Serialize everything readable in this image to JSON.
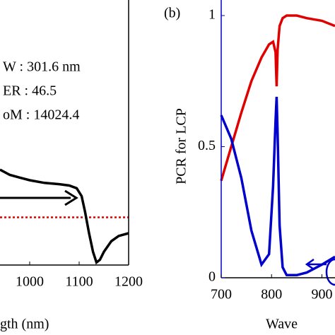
{
  "chart_data": [
    {
      "type": "line",
      "xlabel": "gth (nm)",
      "annotations": [
        "W : 301.6 nm",
        "ER : 46.5",
        "oM : 14024.4"
      ],
      "x": [
        940,
        960,
        980,
        1000,
        1030,
        1060,
        1080,
        1095,
        1105,
        1112,
        1120,
        1128,
        1135,
        1142,
        1150,
        1165,
        1180,
        1200
      ],
      "series": [
        {
          "color": "#000000",
          "values": [
            0.36,
            0.34,
            0.33,
            0.32,
            0.31,
            0.305,
            0.3,
            0.29,
            0.26,
            0.2,
            0.12,
            0.05,
            0.01,
            0.02,
            0.05,
            0.09,
            0.11,
            0.12
          ]
        }
      ],
      "reference_line": {
        "value": 0.18,
        "color": "#e00000"
      },
      "xlim": [
        940,
        1200
      ],
      "ylim": [
        0,
        1
      ],
      "xticks": [
        1000,
        1100,
        1200
      ]
    },
    {
      "type": "line",
      "panel_label": "(b)",
      "ylabel": "PCR for LCP",
      "xlabel": "Wave",
      "x": [
        700,
        720,
        740,
        760,
        780,
        795,
        803,
        808,
        810,
        812,
        816,
        822,
        830,
        850,
        870,
        900,
        926
      ],
      "series": [
        {
          "color": "#e00000",
          "values": [
            0.37,
            0.5,
            0.63,
            0.75,
            0.84,
            0.89,
            0.9,
            0.86,
            0.73,
            0.87,
            0.96,
            0.99,
            1.0,
            1.0,
            0.99,
            0.98,
            0.96
          ]
        },
        {
          "color": "#0000cc",
          "values": [
            0.62,
            0.53,
            0.38,
            0.18,
            0.05,
            0.09,
            0.35,
            0.6,
            0.69,
            0.55,
            0.2,
            0.04,
            0.01,
            0.01,
            0.02,
            0.05,
            0.08
          ]
        }
      ],
      "xlim": [
        700,
        926
      ],
      "ylim": [
        0,
        1
      ],
      "xticks": [
        700,
        800,
        900
      ],
      "yticks": [
        0,
        0.5,
        1
      ],
      "yaxis_color": "#0000cc"
    }
  ]
}
